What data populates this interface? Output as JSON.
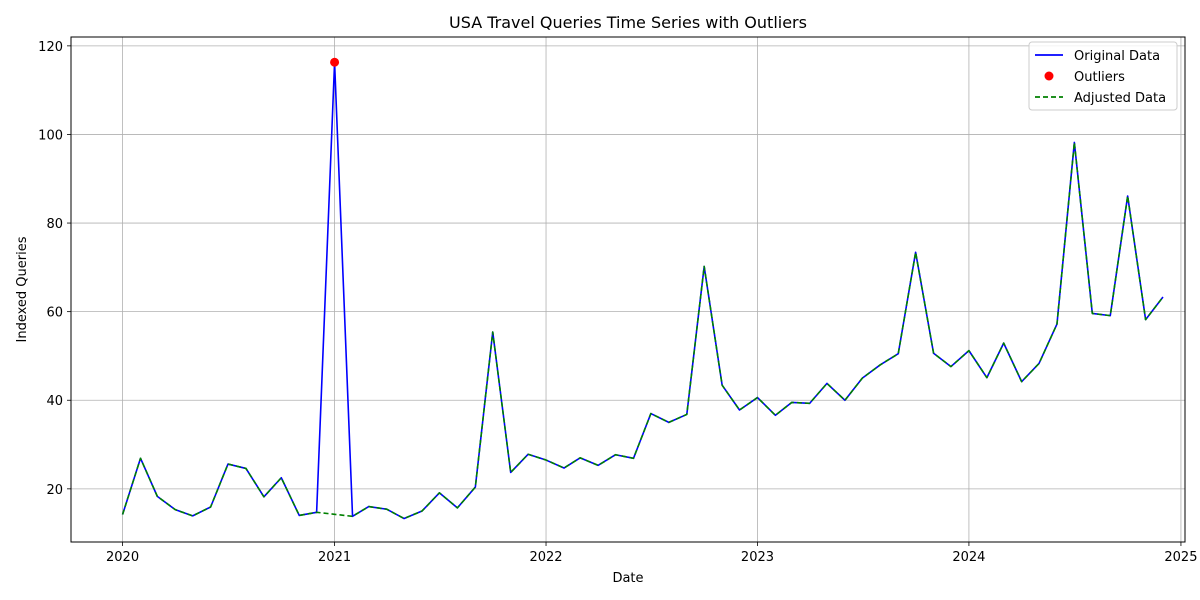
{
  "chart_data": {
    "type": "line",
    "title": "USA Travel Queries Time Series with Outliers",
    "xlabel": "Date",
    "ylabel": "Indexed Queries",
    "xlim": [
      "2019-10-04",
      "2025-01-08"
    ],
    "ylim": [
      8,
      122
    ],
    "x_ticks": [
      "2020",
      "2021",
      "2022",
      "2023",
      "2024",
      "2025"
    ],
    "x_tick_dates": [
      "2020-01-01",
      "2021-01-01",
      "2022-01-01",
      "2023-01-01",
      "2024-01-01",
      "2025-01-01"
    ],
    "y_ticks": [
      20,
      40,
      60,
      80,
      100,
      120
    ],
    "grid": true,
    "legend_position": "top-right",
    "x": [
      "2020-01-01",
      "2020-02-01",
      "2020-03-01",
      "2020-04-01",
      "2020-05-01",
      "2020-06-01",
      "2020-07-01",
      "2020-08-01",
      "2020-09-01",
      "2020-10-01",
      "2020-11-01",
      "2020-12-01",
      "2021-01-01",
      "2021-02-01",
      "2021-03-01",
      "2021-04-01",
      "2021-05-01",
      "2021-06-01",
      "2021-07-01",
      "2021-08-01",
      "2021-09-01",
      "2021-10-01",
      "2021-11-01",
      "2021-12-01",
      "2022-01-01",
      "2022-02-01",
      "2022-03-01",
      "2022-04-01",
      "2022-05-01",
      "2022-06-01",
      "2022-07-01",
      "2022-08-01",
      "2022-09-01",
      "2022-10-01",
      "2022-11-01",
      "2022-12-01",
      "2023-01-01",
      "2023-02-01",
      "2023-03-01",
      "2023-04-01",
      "2023-05-01",
      "2023-06-01",
      "2023-07-01",
      "2023-08-01",
      "2023-09-01",
      "2023-10-01",
      "2023-11-01",
      "2023-12-01",
      "2024-01-01",
      "2024-02-01",
      "2024-03-01",
      "2024-04-01",
      "2024-05-01",
      "2024-06-01",
      "2024-07-01",
      "2024-08-01",
      "2024-09-01",
      "2024-10-01",
      "2024-11-01",
      "2024-12-01"
    ],
    "series": [
      {
        "name": "Original Data",
        "color": "#0000ff",
        "style": "solid",
        "values": [
          14.2,
          26.9,
          18.3,
          15.3,
          13.9,
          15.9,
          25.6,
          24.6,
          18.2,
          22.5,
          14.0,
          14.7,
          116.3,
          13.8,
          16.0,
          15.4,
          13.3,
          15.0,
          19.1,
          15.7,
          20.4,
          55.4,
          23.7,
          27.8,
          26.5,
          24.7,
          27.0,
          25.3,
          27.7,
          26.9,
          37.0,
          35.0,
          36.8,
          70.2,
          43.4,
          37.8,
          40.6,
          36.6,
          39.5,
          39.3,
          43.8,
          40.0,
          45.0,
          48.0,
          50.5,
          73.4,
          50.6,
          47.6,
          51.2,
          45.1,
          52.9,
          44.2,
          48.3,
          57.2,
          98.2,
          59.6,
          59.1,
          86.1,
          58.2,
          63.3
        ]
      },
      {
        "name": "Outliers",
        "color": "#ff0000",
        "style": "marker",
        "points": [
          {
            "x": "2021-01-01",
            "y": 116.3
          }
        ]
      },
      {
        "name": "Adjusted Data",
        "color": "#008000",
        "style": "dashed",
        "values": [
          14.2,
          26.9,
          18.3,
          15.3,
          13.9,
          15.9,
          25.6,
          24.6,
          18.2,
          22.5,
          14.0,
          14.7,
          null,
          13.8,
          16.0,
          15.4,
          13.3,
          15.0,
          19.1,
          15.7,
          20.4,
          55.4,
          23.7,
          27.8,
          26.5,
          24.7,
          27.0,
          25.3,
          27.7,
          26.9,
          37.0,
          35.0,
          36.8,
          70.2,
          43.4,
          37.8,
          40.6,
          36.6,
          39.5,
          39.3,
          43.8,
          40.0,
          45.0,
          48.0,
          50.5,
          73.4,
          50.6,
          47.6,
          51.2,
          45.1,
          52.9,
          44.2,
          48.3,
          57.2,
          98.2,
          59.6,
          59.1,
          86.1,
          58.2,
          63.3
        ]
      }
    ]
  }
}
